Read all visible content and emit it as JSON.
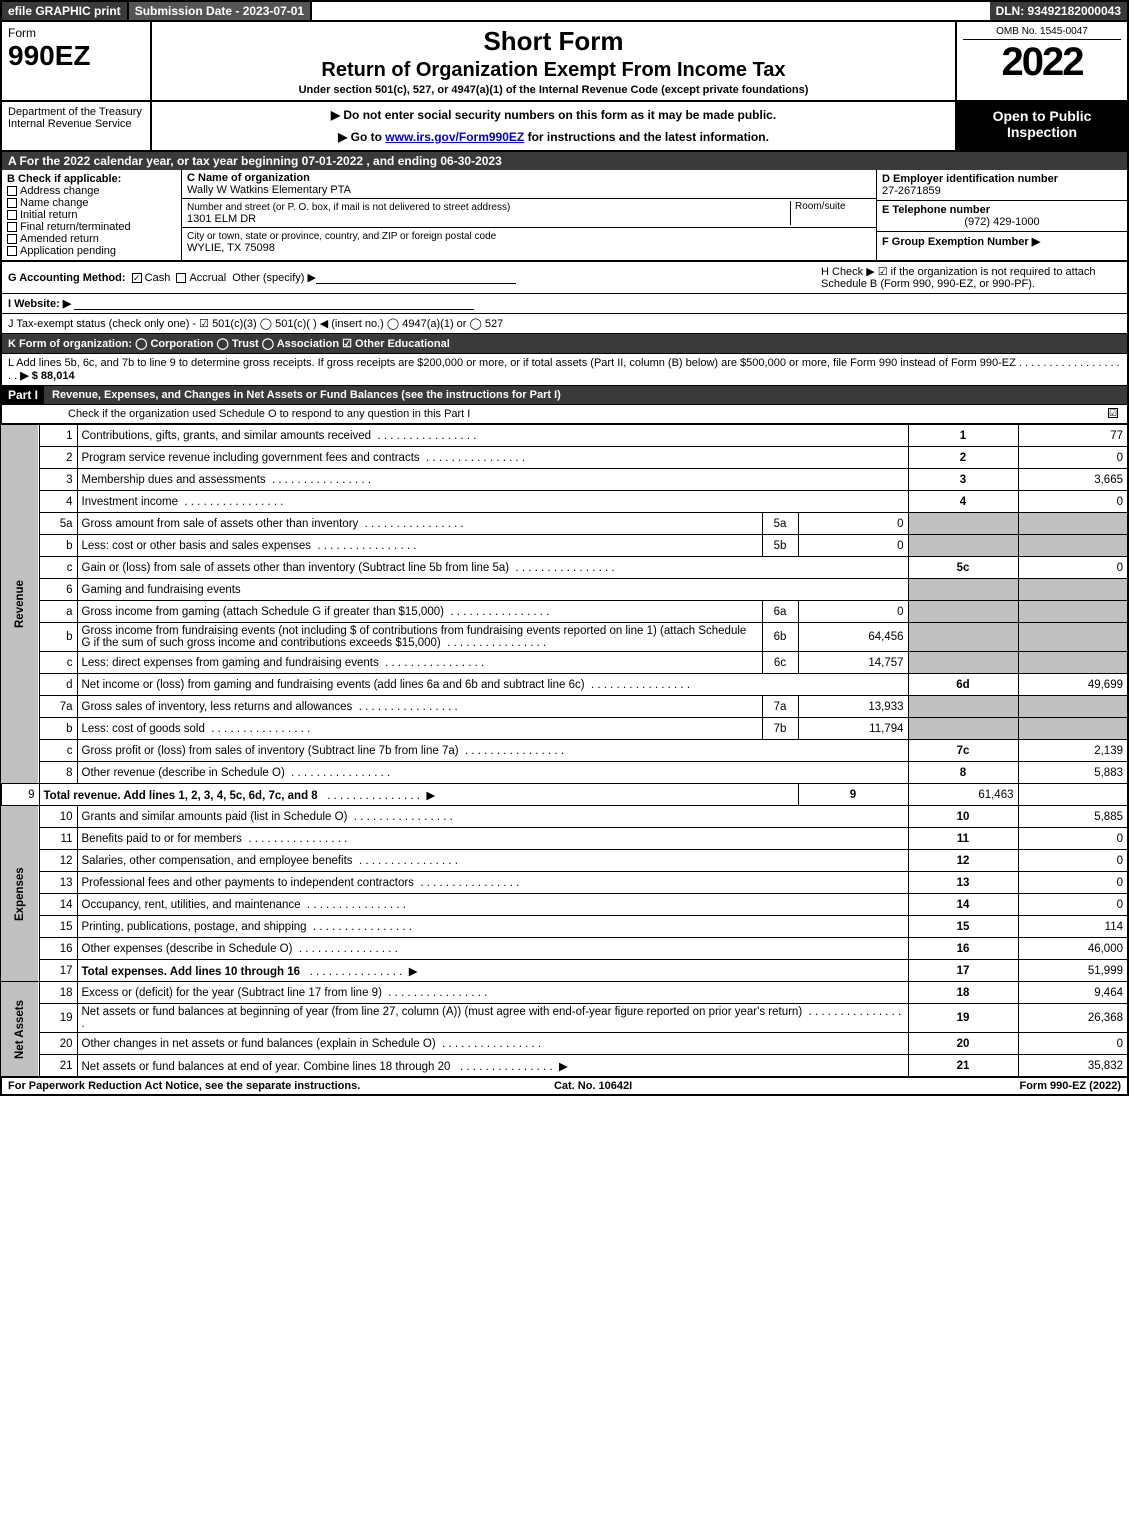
{
  "top": {
    "efile": "efile GRAPHIC print",
    "submission": "Submission Date - 2023-07-01",
    "dln": "DLN: 93492182000043"
  },
  "header": {
    "form": "Form",
    "form_no": "990EZ",
    "dept": "Department of the Treasury\nInternal Revenue Service",
    "title": "Short Form",
    "subtitle": "Return of Organization Exempt From Income Tax",
    "undersection": "Under section 501(c), 527, or 4947(a)(1) of the Internal Revenue Code (except private foundations)",
    "note1": "▶ Do not enter social security numbers on this form as it may be made public.",
    "note2": "▶ Go to www.irs.gov/Form990EZ for instructions and the latest information.",
    "omb": "OMB No. 1545-0047",
    "year": "2022",
    "inspection": "Open to Public Inspection"
  },
  "lineA": "A  For the 2022 calendar year, or tax year beginning 07-01-2022 , and ending 06-30-2023",
  "B": {
    "label": "B  Check if applicable:",
    "items": [
      "Address change",
      "Name change",
      "Initial return",
      "Final return/terminated",
      "Amended return",
      "Application pending"
    ]
  },
  "C": {
    "label": "C Name of organization",
    "name": "Wally W Watkins Elementary PTA",
    "street_label": "Number and street (or P. O. box, if mail is not delivered to street address)",
    "room_label": "Room/suite",
    "street": "1301 ELM DR",
    "city_label": "City or town, state or province, country, and ZIP or foreign postal code",
    "city": "WYLIE, TX  75098"
  },
  "D": {
    "label": "D Employer identification number",
    "value": "27-2671859"
  },
  "E": {
    "label": "E Telephone number",
    "value": "(972) 429-1000"
  },
  "F": {
    "label": "F Group Exemption Number  ▶",
    "value": ""
  },
  "G": {
    "label": "G Accounting Method:",
    "cash": "Cash",
    "accrual": "Accrual",
    "other": "Other (specify) ▶"
  },
  "H": {
    "text": "H  Check ▶ ☑ if the organization is not required to attach Schedule B (Form 990, 990-EZ, or 990-PF)."
  },
  "I": {
    "label": "I Website: ▶"
  },
  "J": {
    "label": "J Tax-exempt status (check only one) - ☑ 501(c)(3)  ◯ 501(c)(  ) ◀ (insert no.)  ◯ 4947(a)(1) or  ◯ 527"
  },
  "K": {
    "label": "K Form of organization:   ◯ Corporation   ◯ Trust   ◯ Association   ☑ Other Educational"
  },
  "L": {
    "text": "L Add lines 5b, 6c, and 7b to line 9 to determine gross receipts. If gross receipts are $200,000 or more, or if total assets (Part II, column (B) below) are $500,000 or more, file Form 990 instead of Form 990-EZ",
    "arrow": "▶ $ 88,014"
  },
  "partI": {
    "title": "Part I",
    "heading": "Revenue, Expenses, and Changes in Net Assets or Fund Balances (see the instructions for Part I)",
    "checknote": "Check if the organization used Schedule O to respond to any question in this Part I",
    "checked": "☑"
  },
  "sections": {
    "revenue": "Revenue",
    "expenses": "Expenses",
    "netassets": "Net Assets"
  },
  "rows": [
    {
      "n": "1",
      "desc": "Contributions, gifts, grants, and similar amounts received",
      "rn": "1",
      "rv": "77"
    },
    {
      "n": "2",
      "desc": "Program service revenue including government fees and contracts",
      "rn": "2",
      "rv": "0"
    },
    {
      "n": "3",
      "desc": "Membership dues and assessments",
      "rn": "3",
      "rv": "3,665"
    },
    {
      "n": "4",
      "desc": "Investment income",
      "rn": "4",
      "rv": "0"
    },
    {
      "n": "5a",
      "desc": "Gross amount from sale of assets other than inventory",
      "mn": "5a",
      "mv": "0",
      "shade": true
    },
    {
      "n": "b",
      "desc": "Less: cost or other basis and sales expenses",
      "mn": "5b",
      "mv": "0",
      "shade": true
    },
    {
      "n": "c",
      "desc": "Gain or (loss) from sale of assets other than inventory (Subtract line 5b from line 5a)",
      "rn": "5c",
      "rv": "0"
    },
    {
      "n": "6",
      "desc": "Gaming and fundraising events",
      "shade": true,
      "noval": true
    },
    {
      "n": "a",
      "desc": "Gross income from gaming (attach Schedule G if greater than $15,000)",
      "mn": "6a",
      "mv": "0",
      "shade": true
    },
    {
      "n": "b",
      "desc": "Gross income from fundraising events (not including $                   of contributions from fundraising events reported on line 1) (attach Schedule G if the sum of such gross income and contributions exceeds $15,000)",
      "mn": "6b",
      "mv": "64,456",
      "shade": true
    },
    {
      "n": "c",
      "desc": "Less: direct expenses from gaming and fundraising events",
      "mn": "6c",
      "mv": "14,757",
      "shade": true
    },
    {
      "n": "d",
      "desc": "Net income or (loss) from gaming and fundraising events (add lines 6a and 6b and subtract line 6c)",
      "rn": "6d",
      "rv": "49,699"
    },
    {
      "n": "7a",
      "desc": "Gross sales of inventory, less returns and allowances",
      "mn": "7a",
      "mv": "13,933",
      "shade": true
    },
    {
      "n": "b",
      "desc": "Less: cost of goods sold",
      "mn": "7b",
      "mv": "11,794",
      "shade": true
    },
    {
      "n": "c",
      "desc": "Gross profit or (loss) from sales of inventory (Subtract line 7b from line 7a)",
      "rn": "7c",
      "rv": "2,139"
    },
    {
      "n": "8",
      "desc": "Other revenue (describe in Schedule O)",
      "rn": "8",
      "rv": "5,883"
    },
    {
      "n": "9",
      "desc": "Total revenue. Add lines 1, 2, 3, 4, 5c, 6d, 7c, and 8",
      "rn": "9",
      "rv": "61,463",
      "bold": true,
      "arrow": true
    }
  ],
  "exp_rows": [
    {
      "n": "10",
      "desc": "Grants and similar amounts paid (list in Schedule O)",
      "rn": "10",
      "rv": "5,885"
    },
    {
      "n": "11",
      "desc": "Benefits paid to or for members",
      "rn": "11",
      "rv": "0"
    },
    {
      "n": "12",
      "desc": "Salaries, other compensation, and employee benefits",
      "rn": "12",
      "rv": "0"
    },
    {
      "n": "13",
      "desc": "Professional fees and other payments to independent contractors",
      "rn": "13",
      "rv": "0"
    },
    {
      "n": "14",
      "desc": "Occupancy, rent, utilities, and maintenance",
      "rn": "14",
      "rv": "0"
    },
    {
      "n": "15",
      "desc": "Printing, publications, postage, and shipping",
      "rn": "15",
      "rv": "114"
    },
    {
      "n": "16",
      "desc": "Other expenses (describe in Schedule O)",
      "rn": "16",
      "rv": "46,000"
    },
    {
      "n": "17",
      "desc": "Total expenses. Add lines 10 through 16",
      "rn": "17",
      "rv": "51,999",
      "bold": true,
      "arrow": true
    }
  ],
  "na_rows": [
    {
      "n": "18",
      "desc": "Excess or (deficit) for the year (Subtract line 17 from line 9)",
      "rn": "18",
      "rv": "9,464"
    },
    {
      "n": "19",
      "desc": "Net assets or fund balances at beginning of year (from line 27, column (A)) (must agree with end-of-year figure reported on prior year's return)",
      "rn": "19",
      "rv": "26,368"
    },
    {
      "n": "20",
      "desc": "Other changes in net assets or fund balances (explain in Schedule O)",
      "rn": "20",
      "rv": "0"
    },
    {
      "n": "21",
      "desc": "Net assets or fund balances at end of year. Combine lines 18 through 20",
      "rn": "21",
      "rv": "35,832",
      "arrow": true
    }
  ],
  "footer": {
    "left": "For Paperwork Reduction Act Notice, see the separate instructions.",
    "mid": "Cat. No. 10642I",
    "right": "Form 990-EZ (2022)"
  },
  "colors": {
    "dark": "#3a3a3a",
    "shade": "#c0c0c0"
  }
}
